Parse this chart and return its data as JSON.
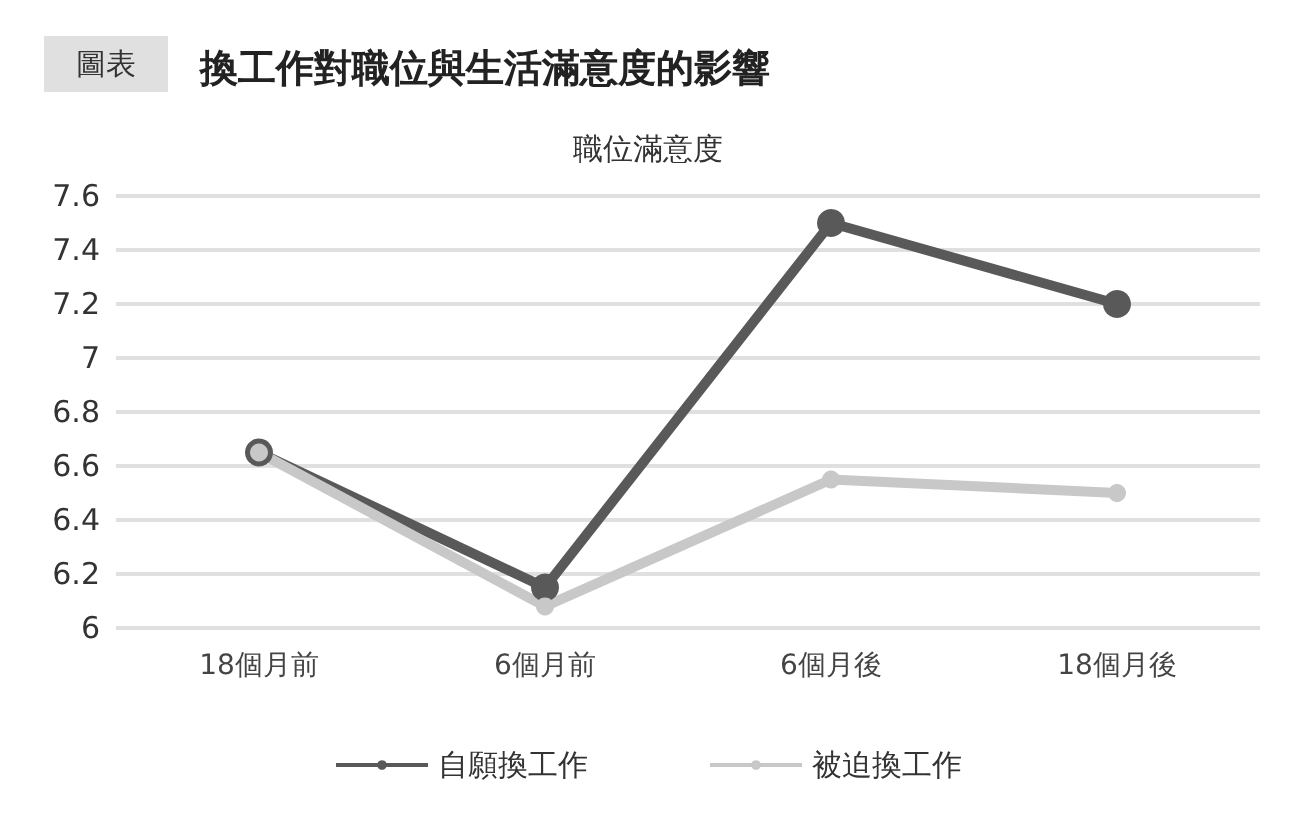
{
  "chart_data": {
    "type": "line",
    "title": "換工作對職位與生活滿意度的影響",
    "subtitle": "職位滿意度",
    "annotations": [
      "圖表"
    ],
    "categories": [
      "18個月前",
      "6個月前",
      "6個月後",
      "18個月後"
    ],
    "series": [
      {
        "name": "自願換工作",
        "color": "#595959",
        "values": [
          6.65,
          6.15,
          7.5,
          7.2
        ]
      },
      {
        "name": "被迫換工作",
        "color": "#c8c8c8",
        "values": [
          6.65,
          6.08,
          6.55,
          6.5
        ]
      }
    ],
    "ylim": [
      6,
      7.6
    ],
    "yticks": [
      6,
      6.2,
      6.4,
      6.6,
      6.8,
      7,
      7.2,
      7.4,
      7.6
    ],
    "grid": "y",
    "legend": "bottom",
    "marker": "circle",
    "line_style": "solid"
  }
}
